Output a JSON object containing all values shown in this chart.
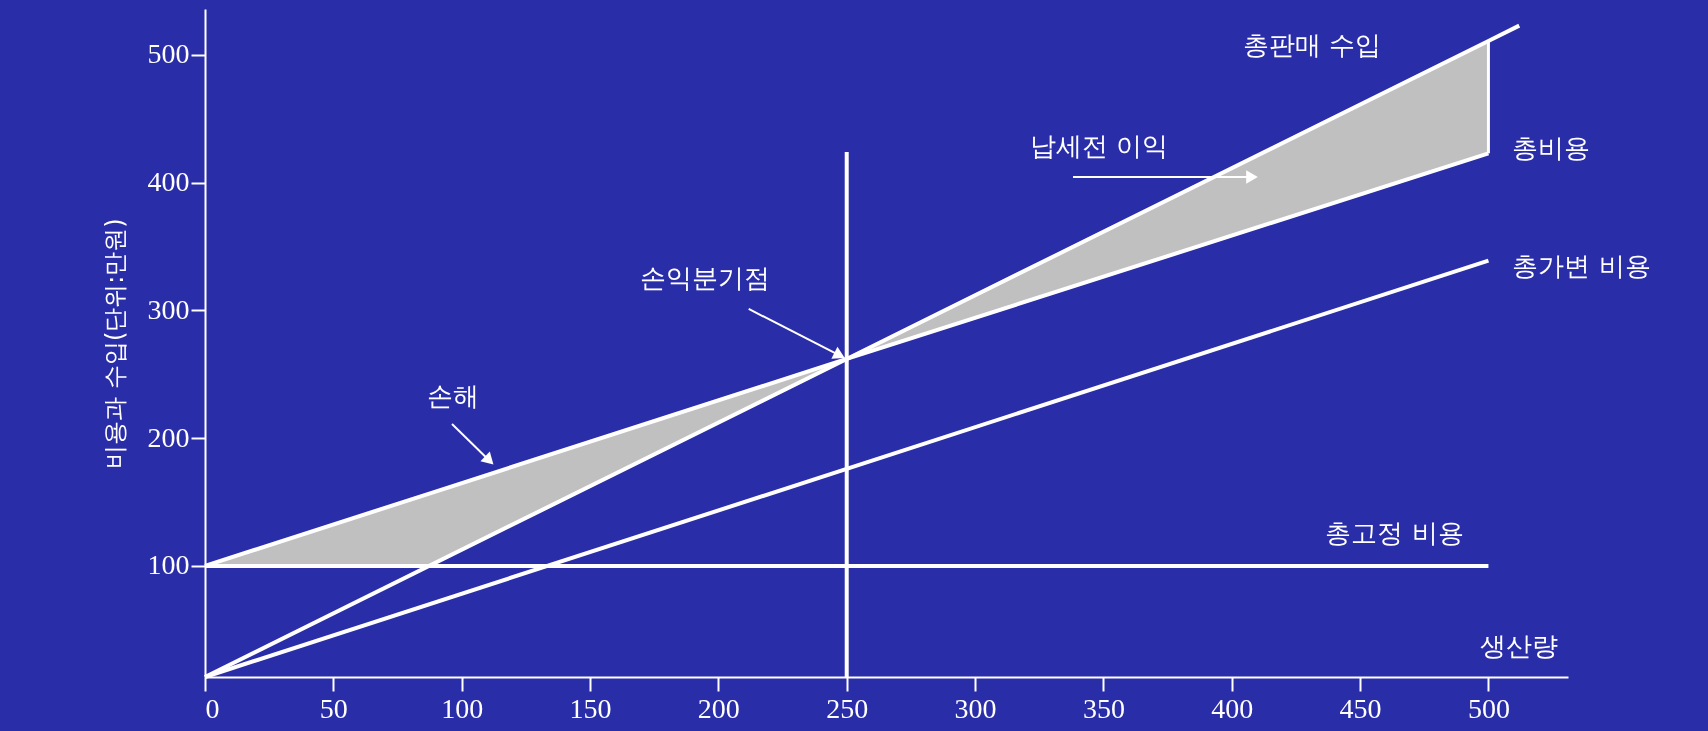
{
  "chart_data": {
    "type": "line",
    "xlabel": "생산량",
    "ylabel": "비용과 수입(단위:만원)",
    "xlim": [
      0,
      531
    ],
    "ylim": [
      13,
      536
    ],
    "xticks": [
      0,
      50,
      100,
      150,
      200,
      250,
      300,
      350,
      400,
      450,
      500
    ],
    "yticks": [
      100,
      200,
      300,
      400,
      500
    ],
    "grid": false,
    "marker": "none",
    "line_style": "solid",
    "series": [
      {
        "name": "총판매 수입",
        "color": "#ffffff",
        "x": [
          0,
          250,
          500,
          512
        ],
        "values": [
          13,
          262,
          511,
          523
        ]
      },
      {
        "name": "총비용",
        "color": "#ffffff",
        "x": [
          0,
          88,
          250,
          500
        ],
        "values": [
          100,
          157,
          262,
          423
        ],
        "lower": [
          100,
          100,
          262,
          423
        ],
        "upper": [
          100,
          157,
          262,
          511
        ]
      },
      {
        "name": "총가변 비용",
        "color": "#ffffff",
        "x": [
          0,
          500
        ],
        "values": [
          13,
          339
        ]
      },
      {
        "name": "총고정 비용",
        "color": "#ffffff",
        "x": [
          0,
          500
        ],
        "values": [
          100,
          100
        ]
      },
      {
        "color": "#ffffff",
        "x": [
          250,
          250
        ],
        "values": [
          13,
          424
        ]
      }
    ],
    "annotations": [
      "납세전 이익",
      {
        "text": "손익분기점",
        "x": 250,
        "y": 262
      },
      "손해"
    ]
  }
}
